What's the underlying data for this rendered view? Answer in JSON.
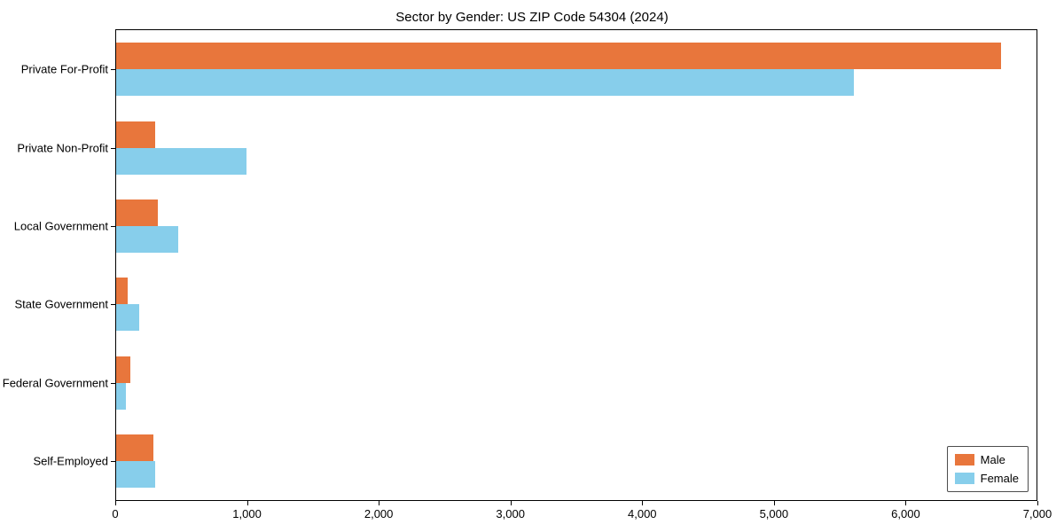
{
  "chart_data": {
    "type": "bar",
    "orientation": "horizontal",
    "title": "Sector by Gender: US ZIP Code 54304 (2024)",
    "categories": [
      "Private For-Profit",
      "Private Non-Profit",
      "Local Government",
      "State Government",
      "Federal Government",
      "Self-Employed"
    ],
    "series": [
      {
        "name": "Male",
        "color": "#E8763C",
        "values": [
          6730,
          300,
          320,
          90,
          110,
          280
        ]
      },
      {
        "name": "Female",
        "color": "#87CEEB",
        "values": [
          5610,
          990,
          470,
          175,
          75,
          300
        ]
      }
    ],
    "xlim": [
      0,
      7000
    ],
    "x_ticks": [
      0,
      1000,
      2000,
      3000,
      4000,
      5000,
      6000,
      7000
    ],
    "x_tick_labels": [
      "0",
      "1,000",
      "2,000",
      "3,000",
      "4,000",
      "5,000",
      "6,000",
      "7,000"
    ],
    "grid": false,
    "legend_position": "lower right",
    "colors": {
      "background": "#ffffff",
      "axis": "#000000",
      "text": "#000000"
    }
  }
}
